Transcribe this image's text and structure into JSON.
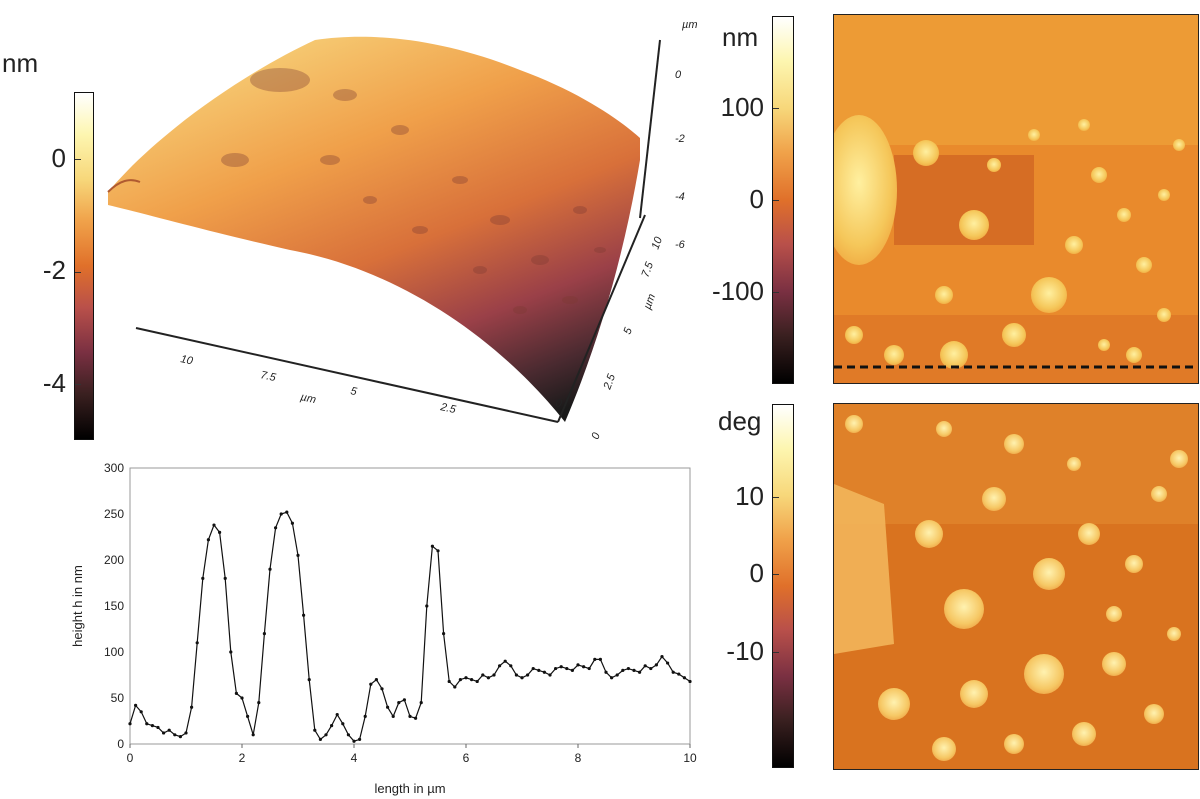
{
  "colors": {
    "scale_stops": [
      "#000000",
      "#3a2020",
      "#7a3042",
      "#b9504a",
      "#e0702a",
      "#f0a24a",
      "#f7d77a",
      "#fdf6b0",
      "#ffffff"
    ],
    "profile_line": "#111111",
    "dashed_line": "#111111"
  },
  "surface3d": {
    "colorbar": {
      "unit": "nm",
      "ticks": [
        {
          "label": "0",
          "value": 0
        },
        {
          "label": "-2",
          "value": -2
        },
        {
          "label": "-4",
          "value": -4
        }
      ],
      "range": [
        -5,
        1.2
      ]
    },
    "axes": {
      "front_ticks": [
        "10",
        "7.5",
        "5",
        "2.5",
        "0"
      ],
      "front_unit": "µm",
      "side_ticks": [
        "0",
        "2.5",
        "5",
        "7.5",
        "10"
      ],
      "side_unit": "µm",
      "z_unit": "µm",
      "z_ticks": [
        "0",
        "-2",
        "-4",
        "-6"
      ]
    }
  },
  "height_map": {
    "colorbar": {
      "unit": "nm",
      "ticks": [
        {
          "label": "100",
          "value": 100
        },
        {
          "label": "0",
          "value": 0
        },
        {
          "label": "-100",
          "value": -100
        }
      ],
      "range": [
        -200,
        200
      ]
    }
  },
  "phase_map": {
    "colorbar": {
      "unit": "deg",
      "ticks": [
        {
          "label": "10",
          "value": 10
        },
        {
          "label": "0",
          "value": 0
        },
        {
          "label": "-10",
          "value": -10
        }
      ],
      "range": [
        -25,
        22
      ]
    }
  },
  "chart_data": {
    "type": "line",
    "xlabel": "length in µm",
    "ylabel": "height h in nm",
    "xlim": [
      0,
      10
    ],
    "ylim": [
      0,
      300
    ],
    "xticks": [
      0,
      2,
      4,
      6,
      8,
      10
    ],
    "yticks": [
      0,
      50,
      100,
      150,
      200,
      250,
      300
    ],
    "grid": false,
    "series": [
      {
        "x": [
          0,
          0.1,
          0.2,
          0.3,
          0.4,
          0.5,
          0.6,
          0.7,
          0.8,
          0.9,
          1.0,
          1.1,
          1.2,
          1.3,
          1.4,
          1.5,
          1.6,
          1.7,
          1.8,
          1.9,
          2.0,
          2.1,
          2.2,
          2.3,
          2.4,
          2.5,
          2.6,
          2.7,
          2.8,
          2.9,
          3.0,
          3.1,
          3.2,
          3.3,
          3.4,
          3.5,
          3.6,
          3.7,
          3.8,
          3.9,
          4.0,
          4.1,
          4.2,
          4.3,
          4.4,
          4.5,
          4.6,
          4.7,
          4.8,
          4.9,
          5.0,
          5.1,
          5.2,
          5.3,
          5.4,
          5.5,
          5.6,
          5.7,
          5.8,
          5.9,
          6.0,
          6.1,
          6.2,
          6.3,
          6.4,
          6.5,
          6.6,
          6.7,
          6.8,
          6.9,
          7.0,
          7.1,
          7.2,
          7.3,
          7.4,
          7.5,
          7.6,
          7.7,
          7.8,
          7.9,
          8.0,
          8.1,
          8.2,
          8.3,
          8.4,
          8.5,
          8.6,
          8.7,
          8.8,
          8.9,
          9.0,
          9.1,
          9.2,
          9.3,
          9.4,
          9.5,
          9.6,
          9.7,
          9.8,
          9.9,
          10.0
        ],
        "y": [
          22,
          42,
          35,
          22,
          20,
          18,
          12,
          15,
          10,
          8,
          12,
          40,
          110,
          180,
          222,
          238,
          230,
          180,
          100,
          55,
          50,
          30,
          10,
          45,
          120,
          190,
          235,
          250,
          252,
          240,
          205,
          140,
          70,
          15,
          5,
          10,
          20,
          32,
          22,
          10,
          3,
          5,
          30,
          65,
          70,
          60,
          40,
          30,
          45,
          48,
          30,
          28,
          45,
          150,
          215,
          210,
          120,
          68,
          62,
          70,
          72,
          70,
          68,
          75,
          72,
          75,
          85,
          90,
          85,
          75,
          72,
          75,
          82,
          80,
          78,
          75,
          82,
          84,
          82,
          80,
          86,
          84,
          82,
          92,
          92,
          78,
          72,
          75,
          80,
          82,
          80,
          78,
          85,
          82,
          86,
          95,
          88,
          78,
          76,
          72,
          68
        ]
      }
    ]
  }
}
